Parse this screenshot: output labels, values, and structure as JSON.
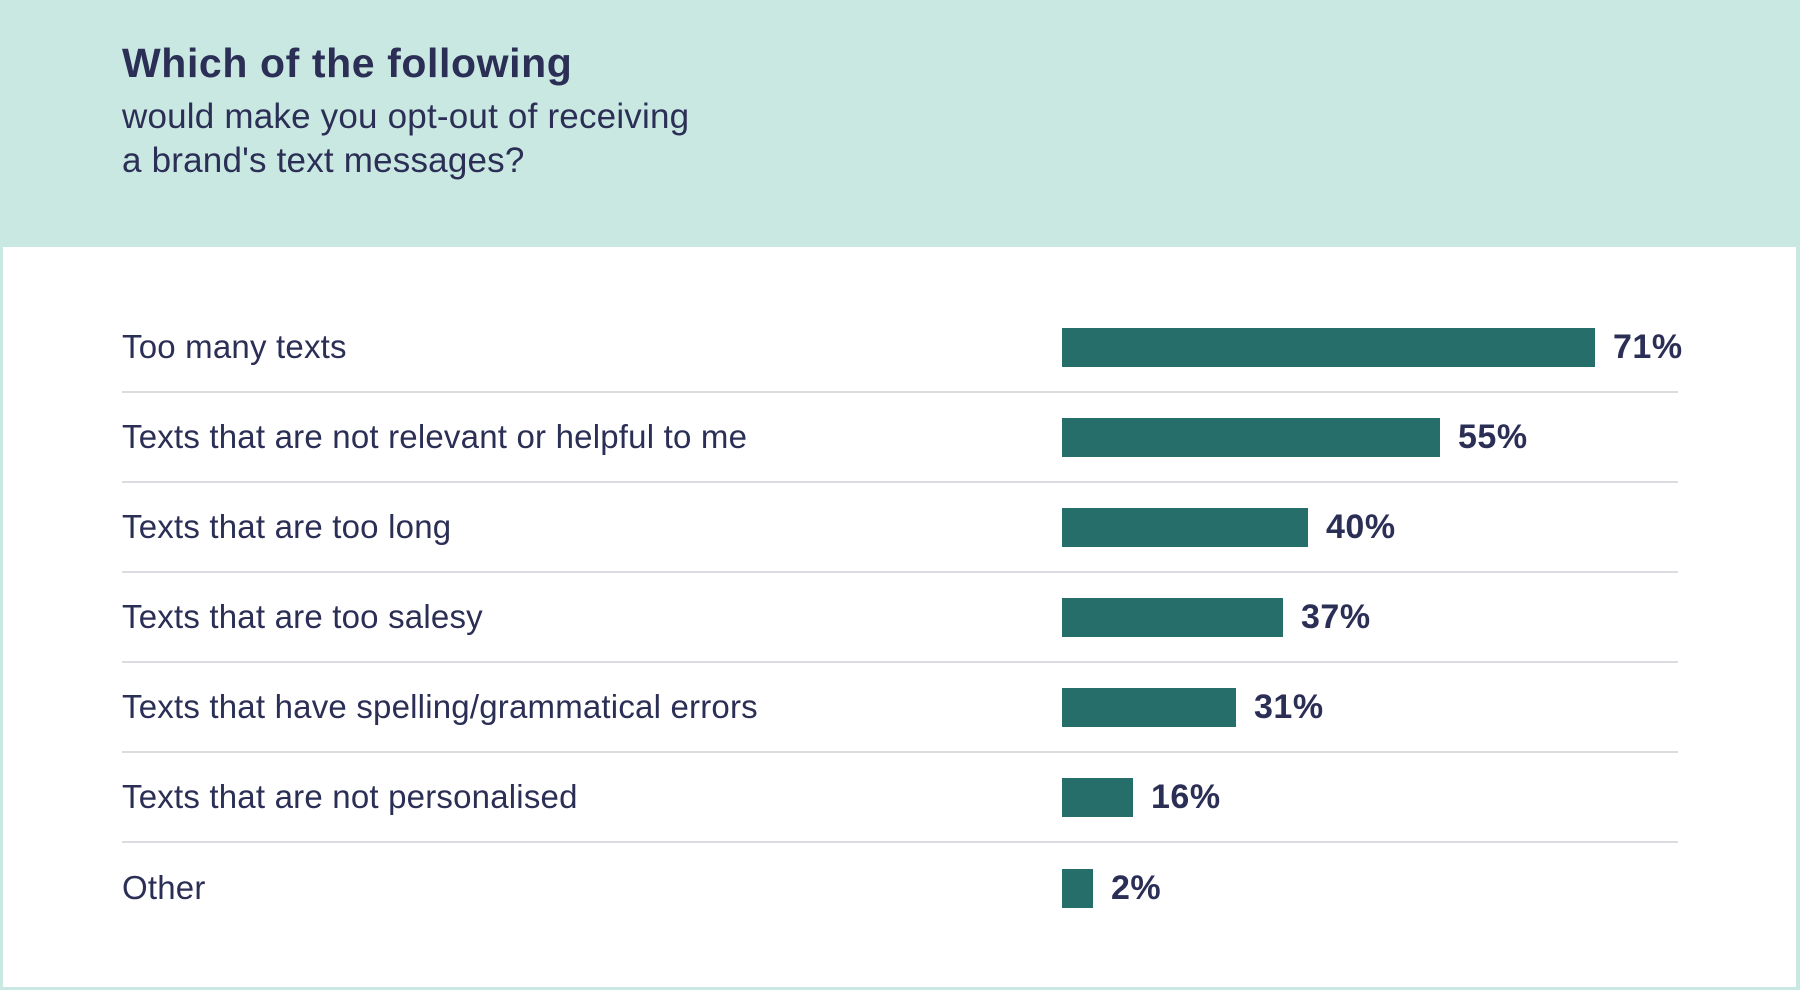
{
  "header": {
    "title_bold": "Which of the following",
    "subtitle_line1": "would make you opt-out of receiving",
    "subtitle_line2": "a brand's text messages?"
  },
  "colors": {
    "background_mint": "#cae8e2",
    "panel_white": "#ffffff",
    "bar_teal": "#266e6a",
    "text_navy": "#2b2e55",
    "divider_gray": "#dcdce0"
  },
  "chart_data": {
    "type": "bar",
    "orientation": "horizontal",
    "title": "Which of the following would make you opt-out of receiving a brand's text messages?",
    "categories": [
      "Too many texts",
      "Texts that are not relevant or helpful to me",
      "Texts that are too long",
      "Texts that are too salesy",
      "Texts that have spelling/grammatical errors",
      "Texts that are not personalised",
      "Other"
    ],
    "values": [
      71,
      55,
      40,
      37,
      31,
      16,
      2
    ],
    "value_suffix": "%",
    "value_labels": [
      "71%",
      "55%",
      "40%",
      "37%",
      "31%",
      "16%",
      "2%"
    ],
    "xlim": [
      0,
      100
    ],
    "grid": false,
    "legend": false,
    "legend_position": "none",
    "bar_label_position": "right-of-bar"
  }
}
